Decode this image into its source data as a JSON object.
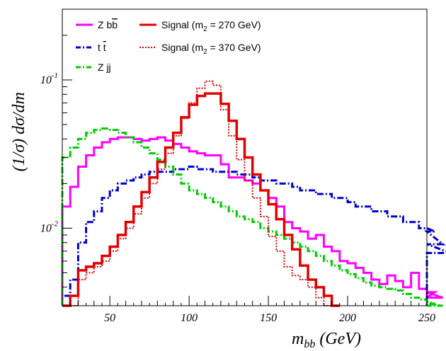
{
  "chart_data": {
    "type": "line",
    "step": true,
    "xlabel": "m",
    "xlabel_sub": "bb",
    "xlabel_unit": " (GeV)",
    "ylabel": "(1/σ) dσ/dm",
    "xlim": [
      20,
      250
    ],
    "ylim": [
      0.003,
      0.3
    ],
    "yscale": "log",
    "bin_width": 5,
    "x_start": 20,
    "x_ticks": [
      50,
      100,
      150,
      200,
      250
    ],
    "y_ticks": [
      {
        "value": 0.1,
        "base": "10",
        "exp": "-1"
      },
      {
        "value": 0.01,
        "base": "10",
        "exp": "-2"
      }
    ],
    "legend": [
      {
        "series": "zbb",
        "text": "Z b",
        "overline": "b",
        "sub": ""
      },
      {
        "series": "tt",
        "text": "t ",
        "overline": "t",
        "sub": ""
      },
      {
        "series": "zjj",
        "text": "Z jj",
        "overline": "",
        "sub": ""
      },
      {
        "series": "sig270",
        "text": "Signal (m",
        "sub": "2",
        "after": " = 270 GeV)"
      },
      {
        "series": "sig370",
        "text": "Signal (m",
        "sub": "2",
        "after": " = 370 GeV)"
      }
    ],
    "series": [
      {
        "id": "zbb",
        "color": "#ff00ff",
        "style": "solid",
        "values": [
          0.014,
          0.019,
          0.026,
          0.031,
          0.035,
          0.038,
          0.04,
          0.041,
          0.041,
          0.04,
          0.039,
          0.04,
          0.041,
          0.039,
          0.037,
          0.035,
          0.033,
          0.032,
          0.031,
          0.031,
          0.027,
          0.022,
          0.022,
          0.021,
          0.02,
          0.018,
          0.016,
          0.014,
          0.011,
          0.01,
          0.0095,
          0.0085,
          0.009,
          0.0075,
          0.007,
          0.006,
          0.0058,
          0.0054,
          0.005,
          0.0045,
          0.0042,
          0.0048,
          0.0044,
          0.004,
          0.005,
          0.0039,
          0.0034,
          0.0037,
          0.0034
        ]
      },
      {
        "id": "tt",
        "color": "#0000cc",
        "style": "dashdot",
        "values": [
          0.0035,
          0.0045,
          0.008,
          0.011,
          0.013,
          0.016,
          0.018,
          0.02,
          0.021,
          0.022,
          0.023,
          0.024,
          0.024,
          0.024,
          0.025,
          0.025,
          0.026,
          0.025,
          0.025,
          0.024,
          0.024,
          0.024,
          0.023,
          0.023,
          0.022,
          0.021,
          0.021,
          0.02,
          0.02,
          0.019,
          0.018,
          0.018,
          0.017,
          0.017,
          0.016,
          0.016,
          0.015,
          0.014,
          0.014,
          0.013,
          0.013,
          0.012,
          0.012,
          0.011,
          0.011,
          0.01,
          0.01,
          0.0095,
          0.0078,
          0.0068
        ]
      },
      {
        "id": "zjj",
        "color": "#00cc00",
        "style": "dashdot",
        "values": [
          0.03,
          0.035,
          0.04,
          0.044,
          0.046,
          0.047,
          0.046,
          0.044,
          0.041,
          0.038,
          0.035,
          0.032,
          0.029,
          0.026,
          0.023,
          0.02,
          0.018,
          0.017,
          0.016,
          0.015,
          0.014,
          0.013,
          0.012,
          0.0115,
          0.011,
          0.01,
          0.0095,
          0.009,
          0.0085,
          0.008,
          0.0075,
          0.007,
          0.0065,
          0.006,
          0.0056,
          0.0052,
          0.0049,
          0.0046,
          0.0043,
          0.0041,
          0.004,
          0.0039,
          0.0038,
          0.0036,
          0.0034,
          0.0033,
          0.0032,
          0.0031,
          0.003
        ]
      },
      {
        "id": "sig270",
        "color": "#e00000",
        "style": "solid",
        "values": [
          0.002,
          0.0035,
          0.0052,
          0.0055,
          0.0058,
          0.0065,
          0.0075,
          0.009,
          0.011,
          0.014,
          0.0175,
          0.022,
          0.028,
          0.035,
          0.044,
          0.056,
          0.068,
          0.078,
          0.081,
          0.081,
          0.069,
          0.053,
          0.04,
          0.03,
          0.023,
          0.018,
          0.0145,
          0.0115,
          0.009,
          0.0072,
          0.0056,
          0.0045,
          0.004,
          0.0035,
          0.003
        ]
      },
      {
        "id": "sig370",
        "color": "#e00000",
        "style": "dotted",
        "values": [
          0.002,
          0.003,
          0.0045,
          0.005,
          0.0055,
          0.006,
          0.007,
          0.0085,
          0.01,
          0.0125,
          0.016,
          0.02,
          0.025,
          0.032,
          0.042,
          0.055,
          0.07,
          0.088,
          0.098,
          0.092,
          0.063,
          0.042,
          0.029,
          0.021,
          0.016,
          0.012,
          0.0088,
          0.007,
          0.0055,
          0.0048,
          0.0045,
          0.004,
          0.0034,
          0.003
        ]
      }
    ]
  }
}
